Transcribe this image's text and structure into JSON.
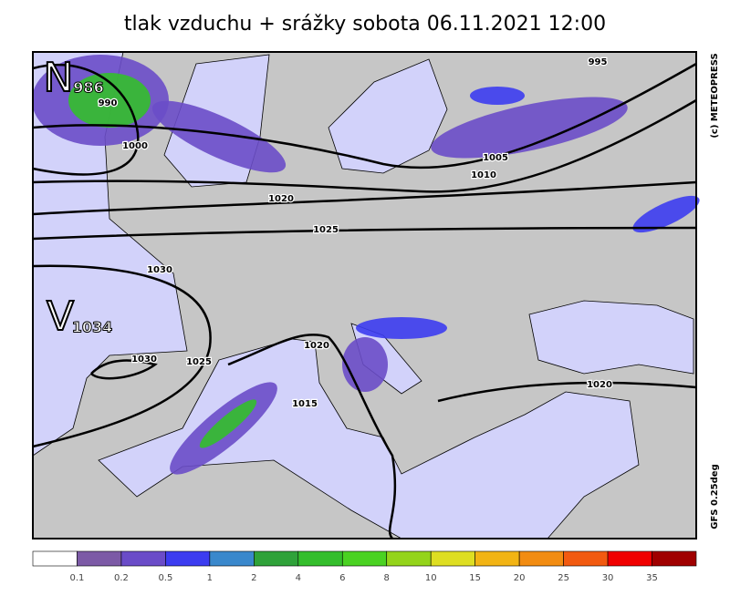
{
  "title": "tlak vzduchu + srážky  sobota 06.11.2021 12:00",
  "credit": "(c) METEOPRESS",
  "model": "GFS 0.25deg",
  "pressure_centers": [
    {
      "letter": "N",
      "value": 986
    },
    {
      "letter": "V",
      "value": 1034
    }
  ],
  "isobar_labels": [
    995,
    990,
    1000,
    1005,
    1010,
    1020,
    1025,
    1030,
    1030,
    1025,
    1020,
    1015,
    1020
  ],
  "legend": {
    "colors": [
      "#ffffff",
      "#7c5aa6",
      "#6a4cc8",
      "#3c3cf0",
      "#3a88cc",
      "#2fa23a",
      "#34be2c",
      "#4ad222",
      "#94d41a",
      "#dede22",
      "#f2b414",
      "#f28c12",
      "#f25a10",
      "#f00000",
      "#a00000"
    ],
    "thresholds": [
      0.1,
      0.2,
      0.5,
      1,
      2,
      4,
      6,
      8,
      10,
      15,
      20,
      25,
      30,
      35
    ]
  }
}
